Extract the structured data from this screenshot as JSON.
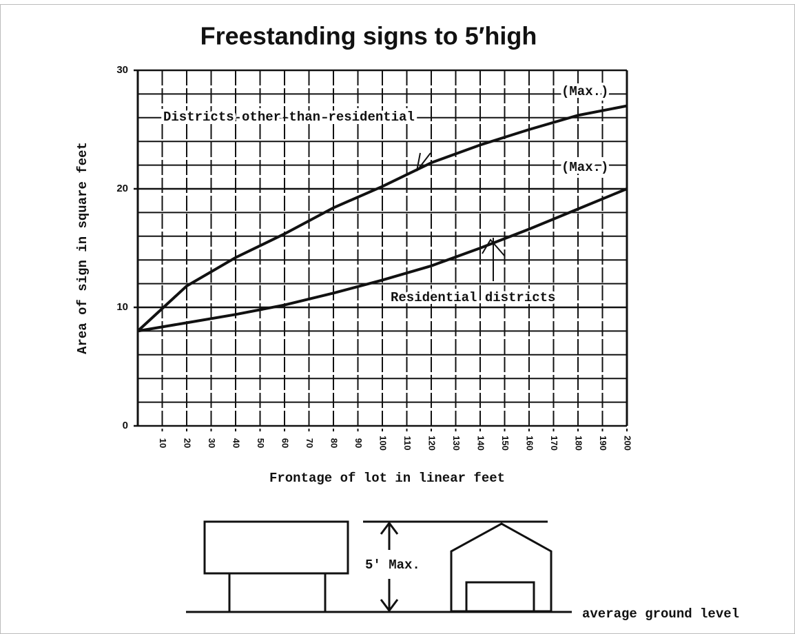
{
  "chart_data": {
    "type": "line",
    "title": "Freestanding signs to 5′high",
    "x_label": "Frontage of lot in linear feet",
    "y_label": "Area of sign in square feet",
    "x": [
      0,
      20,
      40,
      60,
      80,
      100,
      120,
      140,
      160,
      180,
      200
    ],
    "series": [
      {
        "name": "Districts other than residential",
        "color": "#111111",
        "values": [
          8,
          11.8,
          14.2,
          16.2,
          18.4,
          20.2,
          22.2,
          23.7,
          25,
          26.2,
          27
        ]
      },
      {
        "name": "Residential districts",
        "color": "#111111",
        "values": [
          8,
          8.7,
          9.4,
          10.2,
          11.2,
          12.3,
          13.5,
          15,
          16.6,
          18.3,
          20
        ]
      }
    ],
    "annotations": [
      "(Max.)",
      "(Max.)"
    ],
    "xlim": [
      0,
      200
    ],
    "xticks": [
      10,
      20,
      30,
      40,
      50,
      60,
      70,
      80,
      90,
      100,
      110,
      120,
      130,
      140,
      150,
      160,
      170,
      180,
      190,
      200
    ],
    "ylim": [
      0,
      30
    ],
    "yticks": [
      0,
      10,
      20,
      30
    ],
    "ygrid": [
      2,
      4,
      6,
      8,
      12,
      14,
      16,
      18,
      22,
      24,
      26,
      28
    ],
    "grid": true
  },
  "diagram": {
    "height_label": "5' Max.",
    "ground_label": "average ground level"
  }
}
